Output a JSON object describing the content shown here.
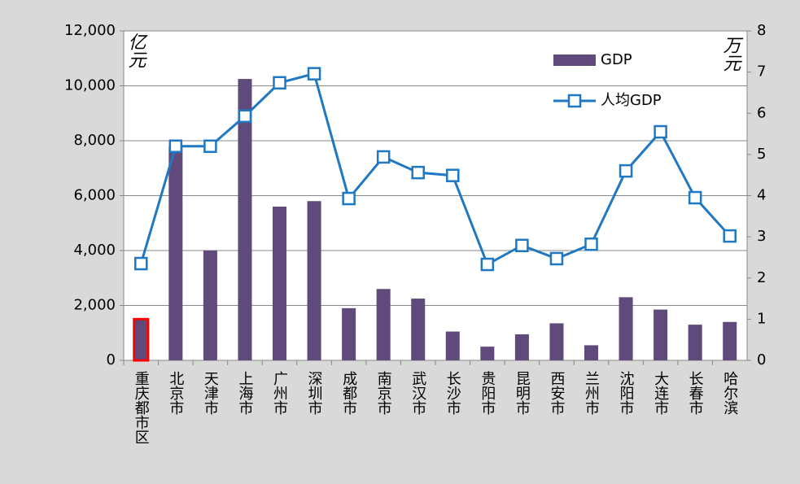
{
  "chart_data": {
    "type": "bar_line",
    "categories": [
      "重庆都市区",
      "北京市",
      "天津市",
      "上海市",
      "广州市",
      "深圳市",
      "成都市",
      "南京市",
      "武汉市",
      "长沙市",
      "贵阳市",
      "昆明市",
      "西安市",
      "兰州市",
      "沈阳市",
      "大连市",
      "长春市",
      "哈尔滨"
    ],
    "series": [
      {
        "name": "GDP",
        "type": "bar",
        "color": "#604a7b",
        "axis": "y",
        "values": [
          1500,
          7800,
          4000,
          10250,
          5600,
          5800,
          1900,
          2600,
          2250,
          1050,
          500,
          950,
          1350,
          550,
          2300,
          1850,
          1300,
          1400
        ]
      },
      {
        "name": "人均GDP",
        "type": "line",
        "color": "#1f78c1",
        "axis": "y2",
        "marker": "square",
        "values": [
          2.35,
          5.2,
          5.2,
          5.93,
          6.74,
          6.96,
          3.93,
          4.94,
          4.56,
          4.49,
          2.33,
          2.79,
          2.47,
          2.82,
          4.6,
          5.55,
          3.95,
          3.02
        ]
      }
    ],
    "y_unit": "亿元",
    "y2_unit": "万元",
    "ylim": [
      0,
      12000
    ],
    "yticks": [
      0,
      {
        "value": 2000,
        "label": "2,000"
      },
      {
        "value": 4000,
        "label": "4,000"
      },
      {
        "value": 6000,
        "label": "6,000"
      },
      {
        "value": 8000,
        "label": "8,000"
      },
      {
        "value": 10000,
        "label": "10,000"
      },
      {
        "value": 12000,
        "label": "12,000"
      }
    ],
    "y2lim": [
      0,
      8
    ],
    "y2ticks": [
      0,
      1,
      2,
      3,
      4,
      5,
      6,
      7,
      8
    ],
    "grid": true,
    "legend": "upper right",
    "highlight_index": 0,
    "highlight_color": "#ff0000"
  }
}
